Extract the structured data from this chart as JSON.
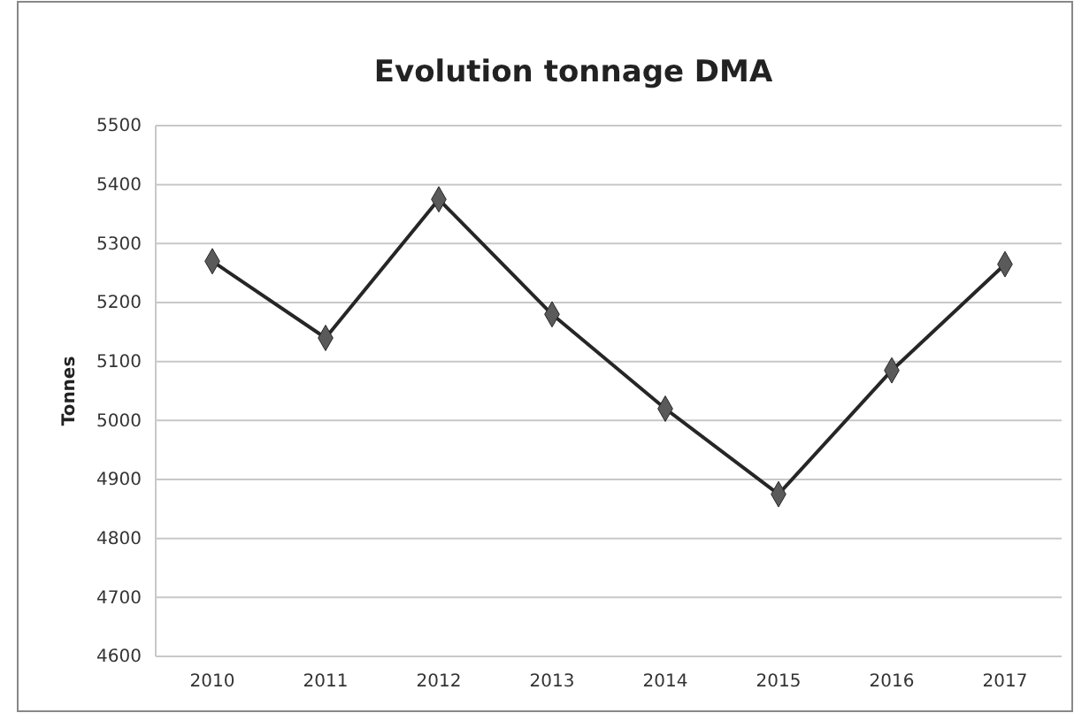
{
  "chart_data": {
    "type": "line",
    "title": "Evolution tonnage DMA",
    "ylabel": "Tonnes",
    "categories": [
      "2010",
      "2011",
      "2012",
      "2013",
      "2014",
      "2015",
      "2016",
      "2017"
    ],
    "series": [
      {
        "color": "#262626",
        "values": [
          5270,
          5140,
          5375,
          5180,
          5020,
          4875,
          5085,
          5265
        ]
      }
    ],
    "ylim": [
      4600,
      5500
    ],
    "yticks": [
      4600,
      4700,
      4800,
      4900,
      5000,
      5100,
      5200,
      5300,
      5400,
      5500
    ],
    "grid": "y",
    "marker": "diamond",
    "line_style": "solid"
  }
}
